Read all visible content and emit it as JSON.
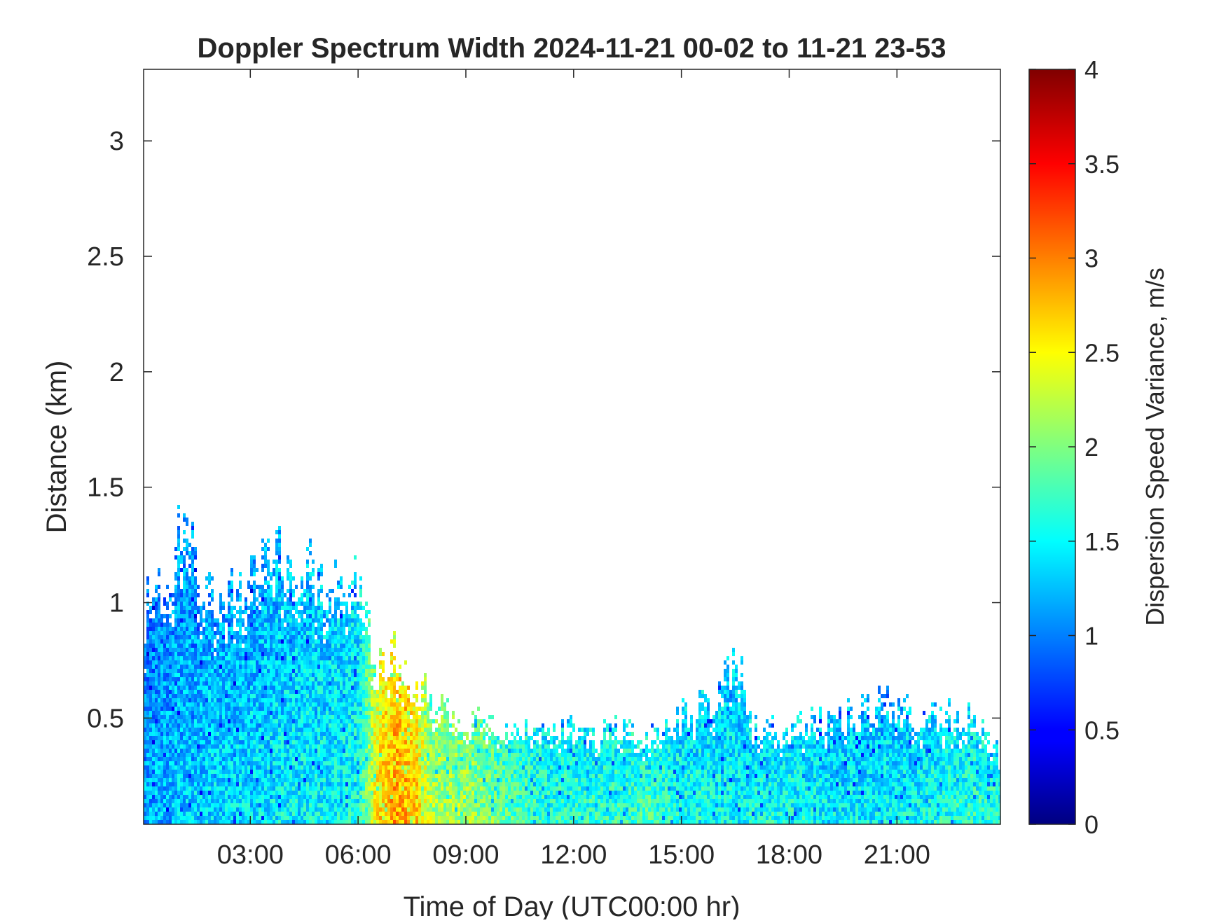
{
  "chart_data": {
    "type": "heatmap",
    "title": "Doppler Spectrum Width 2024-11-21 00-02 to 11-21 23-53",
    "xlabel": "Time of Day (UTC00:00 hr)",
    "ylabel": "Distance (km)",
    "colorbar_label": "Dispersion Speed Variance, m/s",
    "colormap": "jet",
    "x_ticks": [
      "03:00",
      "06:00",
      "09:00",
      "12:00",
      "15:00",
      "18:00",
      "21:00"
    ],
    "x_tick_hours": [
      3,
      6,
      9,
      12,
      15,
      18,
      21
    ],
    "xlim_hours": [
      0.03,
      23.88
    ],
    "y_ticks": [
      "0.5",
      "1",
      "1.5",
      "2",
      "2.5",
      "3"
    ],
    "y_tick_values": [
      0.5,
      1,
      1.5,
      2,
      2.5,
      3
    ],
    "ylim_km": [
      0.04,
      3.31
    ],
    "colorbar_ticks": [
      "0",
      "0.5",
      "1",
      "1.5",
      "2",
      "2.5",
      "3",
      "3.5",
      "4"
    ],
    "clim": [
      0,
      4
    ],
    "grid": false,
    "approx_profile": {
      "description_hours": [
        0,
        1,
        2,
        3,
        4,
        5,
        6,
        6.5,
        7,
        7.5,
        8,
        9,
        10,
        11,
        12,
        13,
        14,
        15,
        16,
        16.5,
        17,
        18,
        19,
        20,
        21,
        22,
        23,
        23.88
      ],
      "layer_top_km": [
        0.95,
        1.3,
        1.0,
        1.1,
        1.2,
        1.1,
        1.1,
        0.75,
        0.78,
        0.6,
        0.6,
        0.5,
        0.45,
        0.45,
        0.45,
        0.45,
        0.4,
        0.5,
        0.6,
        0.8,
        0.45,
        0.45,
        0.5,
        0.55,
        0.55,
        0.5,
        0.5,
        0.35
      ],
      "typical_width_ms": [
        1.2,
        1.3,
        1.4,
        1.4,
        1.5,
        1.5,
        1.6,
        2.6,
        2.9,
        2.8,
        2.2,
        2.2,
        1.9,
        1.7,
        1.7,
        1.7,
        1.8,
        1.6,
        1.6,
        1.5,
        1.6,
        1.6,
        1.5,
        1.5,
        1.5,
        1.6,
        1.7,
        1.7
      ]
    }
  }
}
